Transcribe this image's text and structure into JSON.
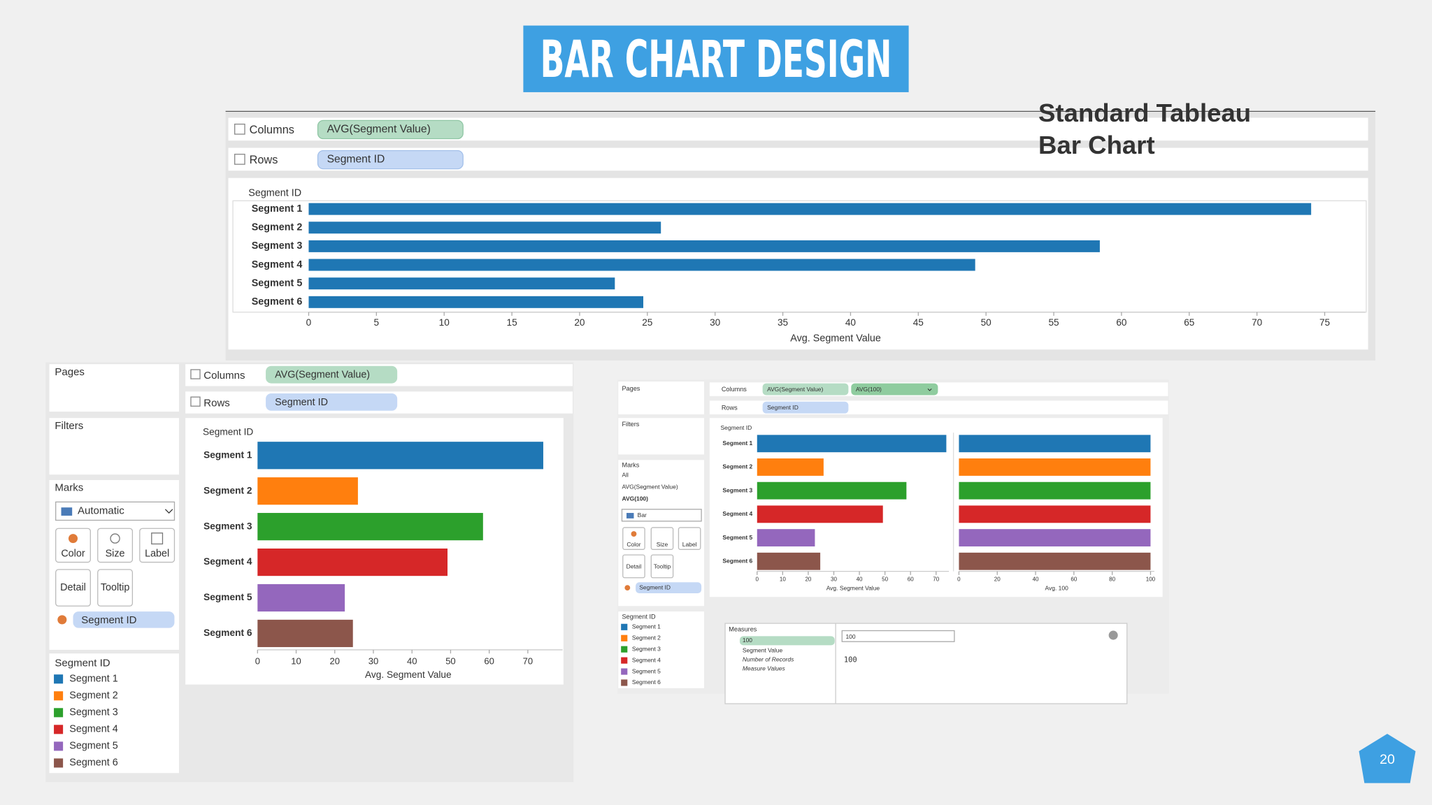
{
  "title": "BAR CHART DESIGN",
  "caption": [
    "Standard Tableau",
    "Bar Chart"
  ],
  "page_number": 20,
  "shelf": {
    "columns": "Columns",
    "rows": "Rows",
    "columns_pill": "AVG(Segment Value)",
    "columns_pill_2": "AVG(100)",
    "rows_pill": "Segment ID"
  },
  "cards": {
    "pages": "Pages",
    "filters": "Filters",
    "marks": "Marks",
    "mark_type": "Automatic",
    "mark_type_2": "Bar",
    "marks_all": "All",
    "color": "Color",
    "size": "Size",
    "label": "Label",
    "detail": "Detail",
    "tooltip": "Tooltip",
    "color_pill": "Segment ID",
    "legend_title": "Segment ID"
  },
  "measures_dialog": {
    "title": "Measures",
    "items": [
      "100",
      "Segment Value",
      "Number of Records",
      "Measure Values"
    ],
    "input": "100",
    "editor_text": "100"
  },
  "chart_data": [
    {
      "type": "bar",
      "orientation": "horizontal",
      "y_label": "Segment ID",
      "x_label": "Avg. Segment Value",
      "categories": [
        "Segment 1",
        "Segment 2",
        "Segment 3",
        "Segment 4",
        "Segment 5",
        "Segment 6"
      ],
      "values": [
        74,
        26,
        58.4,
        49.2,
        22.6,
        24.7
      ],
      "color": "#1f77b4",
      "xlim": [
        0,
        78
      ],
      "xticks": [
        0,
        5,
        10,
        15,
        20,
        25,
        30,
        35,
        40,
        45,
        50,
        55,
        60,
        65,
        70,
        75
      ]
    },
    {
      "type": "bar",
      "orientation": "horizontal",
      "y_label": "Segment ID",
      "x_label": "Avg. Segment Value",
      "categories": [
        "Segment 1",
        "Segment 2",
        "Segment 3",
        "Segment 4",
        "Segment 5",
        "Segment 6"
      ],
      "values": [
        74,
        26,
        58.4,
        49.2,
        22.6,
        24.7
      ],
      "colors": [
        "#1f77b4",
        "#ff7f0e",
        "#2ca02c",
        "#d62728",
        "#9467bd",
        "#8c564b"
      ],
      "xlim": [
        0,
        79
      ],
      "xticks": [
        0,
        10,
        20,
        30,
        40,
        50,
        60,
        70
      ]
    },
    {
      "type": "bar",
      "orientation": "horizontal",
      "y_label": "Segment ID",
      "x_label": "Avg. Segment Value",
      "categories": [
        "Segment 1",
        "Segment 2",
        "Segment 3",
        "Segment 4",
        "Segment 5",
        "Segment 6"
      ],
      "values": [
        74,
        26,
        58.4,
        49.2,
        22.6,
        24.7
      ],
      "colors": [
        "#1f77b4",
        "#ff7f0e",
        "#2ca02c",
        "#d62728",
        "#9467bd",
        "#8c564b"
      ],
      "xlim": [
        0,
        75
      ],
      "xticks": [
        0,
        10,
        20,
        30,
        40,
        50,
        60,
        70
      ]
    },
    {
      "type": "bar",
      "orientation": "horizontal",
      "x_label": "Avg. 100",
      "values": [
        100,
        100,
        100,
        100,
        100,
        100
      ],
      "colors": [
        "#1f77b4",
        "#ff7f0e",
        "#2ca02c",
        "#d62728",
        "#9467bd",
        "#8c564b"
      ],
      "xlim": [
        0,
        102
      ],
      "xticks": [
        0,
        20,
        40,
        60,
        80,
        100
      ]
    }
  ]
}
